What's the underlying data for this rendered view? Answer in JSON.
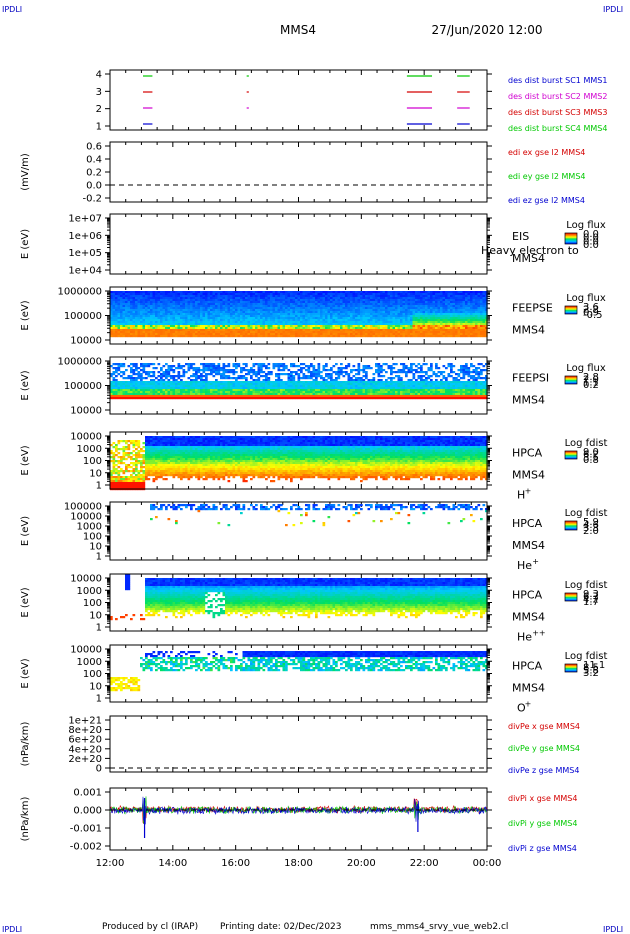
{
  "header": {
    "corner_left_top": "IPDLI",
    "corner_right_top": "IPDLI",
    "corner_left_bottom": "IPDLI",
    "corner_right_bottom": "IPDLI",
    "title": "MMS4",
    "datetime": "27/Jun/2020 12:00"
  },
  "footer": {
    "produced_by": "Produced by cl (IRAP)",
    "printing_date": "Printing date: 02/Dec/2023",
    "script_name": "mms_mms4_srvy_vue_web2.cl"
  },
  "colors": {
    "red": "#d40000",
    "green": "#00c800",
    "blue": "#0000d0",
    "magenta": "#d000d0"
  },
  "chart_data": {
    "type": "multi-panel time series",
    "x_ticks": [
      "12:00",
      "14:00",
      "16:00",
      "18:00",
      "20:00",
      "22:00",
      "00:00"
    ],
    "xlim": [
      "12:00",
      "00:00"
    ],
    "panels": [
      {
        "id": "burst",
        "type": "timeline",
        "ylabel": "",
        "y_ticks": [
          "4",
          "3",
          "2",
          "1"
        ],
        "legend": [
          {
            "label": "des dist burst SC1 MMS1",
            "color": "#0000d0"
          },
          {
            "label": "des dist burst SC2 MMS2",
            "color": "#d000d0"
          },
          {
            "label": "des dist burst SC3 MMS3",
            "color": "#d40000"
          },
          {
            "label": "des dist burst SC4 MMS4",
            "color": "#00c800"
          }
        ],
        "intervals_hours": [
          {
            "start": 13.05,
            "end": 13.35
          },
          {
            "start": 16.35,
            "end": 16.42
          },
          {
            "start": 21.45,
            "end": 22.25
          },
          {
            "start": 23.05,
            "end": 23.45
          }
        ]
      },
      {
        "id": "edi",
        "type": "line",
        "ylabel": "(mV/m)",
        "y_ticks": [
          "0.6",
          "0.4",
          "0.2",
          "0.0",
          "-0.2"
        ],
        "ylim": [
          -0.3,
          0.65
        ],
        "legend": [
          {
            "label": "edi ex gse l2 MMS4",
            "color": "#d40000"
          },
          {
            "label": "edi ey gse l2 MMS4",
            "color": "#00c800"
          },
          {
            "label": "edi ez gse l2 MMS4",
            "color": "#0000d0"
          }
        ]
      },
      {
        "id": "eis",
        "type": "heatmap",
        "ylabel": "E (eV)",
        "y_ticks": [
          "1e+07",
          "1e+06",
          "1e+05",
          "1e+04"
        ],
        "label1": "EIS",
        "label2": "MMS4",
        "overlay_text": "Heavy electron to",
        "cbar_title": "Log flux",
        "cbar_ticks": [
          "0.0",
          "0.0",
          "0.0",
          "0.0"
        ]
      },
      {
        "id": "feepse",
        "type": "heatmap",
        "ylabel": "E (eV)",
        "y_ticks": [
          "1000000",
          "100000",
          "10000"
        ],
        "label1": "FEEPSE",
        "label2": "MMS4",
        "cbar_title": "Log flux",
        "cbar_ticks": [
          "3.6",
          "2.2",
          "0.9",
          "-0.5"
        ]
      },
      {
        "id": "feepsi",
        "type": "heatmap",
        "ylabel": "E (eV)",
        "y_ticks": [
          "1000000",
          "100000",
          "10000"
        ],
        "label1": "FEEPSI",
        "label2": "MMS4",
        "cbar_title": "Log flux",
        "cbar_ticks": [
          "2.8",
          "2.0",
          "1.1",
          "0.2"
        ]
      },
      {
        "id": "hpca_h",
        "type": "heatmap",
        "ylabel": "E (eV)",
        "y_ticks": [
          "10000",
          "1000",
          "100",
          "10",
          "1"
        ],
        "label1": "HPCA",
        "label2": "MMS4",
        "species": "H",
        "species_sup": "+",
        "cbar_title": "Log fdist",
        "cbar_ticks": [
          "9.0",
          "6.2",
          "3.5",
          "0.8"
        ]
      },
      {
        "id": "hpca_he",
        "type": "heatmap",
        "ylabel": "E (eV)",
        "y_ticks": [
          "100000",
          "10000",
          "1000",
          "100",
          "10",
          "1"
        ],
        "label1": "HPCA",
        "label2": "MMS4",
        "species": "He",
        "species_sup": "+",
        "cbar_title": "Log fdist",
        "cbar_ticks": [
          "5.9",
          "4.6",
          "3.3",
          "2.0"
        ]
      },
      {
        "id": "hpca_hepp",
        "type": "heatmap",
        "ylabel": "E (eV)",
        "y_ticks": [
          "10000",
          "1000",
          "100",
          "10",
          "1"
        ],
        "label1": "HPCA",
        "label2": "MMS4",
        "species": "He",
        "species_sup": "++",
        "cbar_title": "Log fdist",
        "cbar_ticks": [
          "9.3",
          "6.7",
          "4.2",
          "1.7"
        ]
      },
      {
        "id": "hpca_o",
        "type": "heatmap",
        "ylabel": "E (eV)",
        "y_ticks": [
          "10000",
          "1000",
          "100",
          "10",
          "1"
        ],
        "label1": "HPCA",
        "label2": "MMS4",
        "species": "O",
        "species_sup": "+",
        "cbar_title": "Log fdist",
        "cbar_ticks": [
          "11.1",
          "8.5",
          "5.8",
          "3.2"
        ]
      },
      {
        "id": "divpe",
        "type": "line",
        "ylabel": "(nPa/km)",
        "y_ticks": [
          "1e+21",
          "8e+20",
          "6e+20",
          "4e+20",
          "2e+20",
          "0"
        ],
        "legend": [
          {
            "label": "divPe x gse MMS4",
            "color": "#d40000"
          },
          {
            "label": "divPe y gse MMS4",
            "color": "#00c800"
          },
          {
            "label": "divPe z gse MMS4",
            "color": "#0000d0"
          }
        ]
      },
      {
        "id": "divpi",
        "type": "line",
        "ylabel": "(nPa/km)",
        "y_ticks": [
          "0.001",
          "0.000",
          "-0.001",
          "-0.002"
        ],
        "ylim": [
          -0.0023,
          0.0013
        ],
        "legend": [
          {
            "label": "divPi x gse MMS4",
            "color": "#d40000"
          },
          {
            "label": "divPi y gse MMS4",
            "color": "#00c800"
          },
          {
            "label": "divPi z gse MMS4",
            "color": "#0000d0"
          }
        ]
      }
    ]
  }
}
